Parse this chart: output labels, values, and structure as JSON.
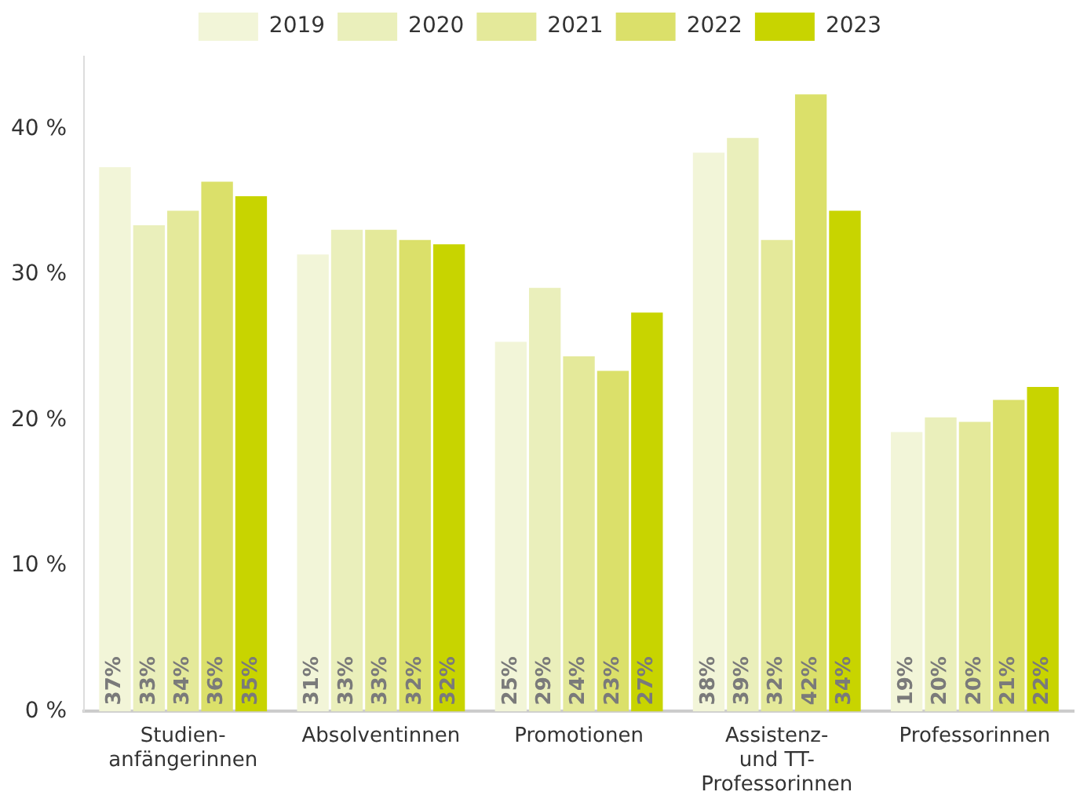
{
  "chart_data": {
    "type": "bar",
    "categories": [
      "Studien-\nanfängerinnen",
      "Absolventinnen",
      "Promotionen",
      "Assistenz-\nund TT-\nProfessorinnen",
      "Professorinnen"
    ],
    "series": [
      {
        "name": "2019",
        "color": "#f2f5d8",
        "values": [
          37.4,
          31.4,
          25.4,
          38.4,
          19.2
        ],
        "value_labels": [
          "37%",
          "31%",
          "25%",
          "38%",
          "19%"
        ]
      },
      {
        "name": "2020",
        "color": "#eaefbb",
        "values": [
          33.4,
          33.1,
          29.1,
          39.4,
          20.2
        ],
        "value_labels": [
          "33%",
          "33%",
          "29%",
          "39%",
          "20%"
        ]
      },
      {
        "name": "2021",
        "color": "#e4e99a",
        "values": [
          34.4,
          33.1,
          24.4,
          32.4,
          19.9
        ],
        "value_labels": [
          "34%",
          "33%",
          "24%",
          "32%",
          "20%"
        ]
      },
      {
        "name": "2022",
        "color": "#dbe06a",
        "values": [
          36.4,
          32.4,
          23.4,
          42.4,
          21.4
        ],
        "value_labels": [
          "36%",
          "32%",
          "23%",
          "42%",
          "21%"
        ]
      },
      {
        "name": "2023",
        "color": "#c8d400",
        "values": [
          35.4,
          32.1,
          27.4,
          34.4,
          22.3
        ],
        "value_labels": [
          "35%",
          "32%",
          "27%",
          "34%",
          "22%"
        ]
      }
    ],
    "ylim": [
      0,
      45
    ],
    "yticks": [
      {
        "value": 0,
        "label": "0 %"
      },
      {
        "value": 10,
        "label": "10 %"
      },
      {
        "value": 20,
        "label": "20 %"
      },
      {
        "value": 30,
        "label": "30 %"
      },
      {
        "value": 40,
        "label": "40 %"
      }
    ],
    "grid": false,
    "legend": "top"
  }
}
